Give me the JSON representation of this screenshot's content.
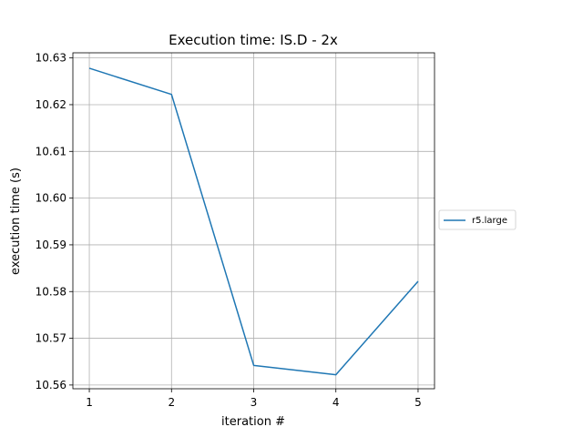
{
  "chart_data": {
    "type": "line",
    "title": "Execution time: IS.D - 2x",
    "xlabel": "iteration #",
    "ylabel": "execution time (s)",
    "x": [
      1,
      2,
      3,
      4,
      5
    ],
    "xticks": [
      "1",
      "2",
      "3",
      "4",
      "5"
    ],
    "yticks": [
      "10.56",
      "10.57",
      "10.58",
      "10.59",
      "10.60",
      "10.61",
      "10.62",
      "10.63"
    ],
    "xlim": [
      0.8,
      5.2
    ],
    "ylim": [
      10.5592,
      10.6311
    ],
    "grid": true,
    "legend_position": "right, outside plot",
    "series": [
      {
        "name": "r5.large",
        "color": "#1f77b4",
        "values": [
          10.6278,
          10.6222,
          10.5642,
          10.5622,
          10.5822
        ]
      }
    ]
  }
}
